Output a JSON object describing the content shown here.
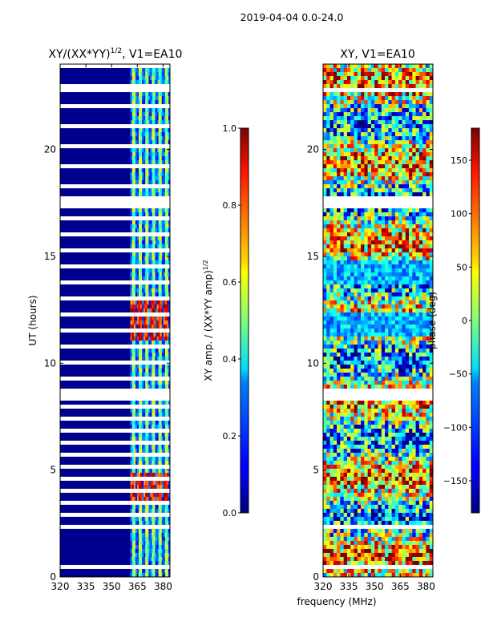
{
  "chart_data": {
    "type": "heatmap",
    "suptitle": "2019-04-04 0.0-24.0",
    "xlabel_shared": "frequency (MHz)",
    "panels": [
      {
        "title_main": "XY/(XX*YY)",
        "title_sup": "1/2",
        "title_tail": ", V1=EA10",
        "ylabel": "UT (hours)",
        "xlim": [
          320,
          384
        ],
        "ylim": [
          0,
          24
        ],
        "xticks": [
          320,
          335,
          350,
          365,
          380
        ],
        "yticks": [
          0,
          5,
          10,
          15,
          20
        ],
        "quantity": "normalized XY amplitude",
        "colorbar": {
          "label_main": "XY amp. / (XX*YY amp)",
          "label_sup": "1/2",
          "range": [
            0.0,
            1.0
          ],
          "ticks": [
            "0.0",
            "0.2",
            "0.4",
            "0.6",
            "0.8",
            "1.0"
          ]
        },
        "features": {
          "rfi_band_mhz": [
            361,
            384
          ],
          "high_amplitude_hours": [
            [
              3.6,
              4.9
            ],
            [
              11.1,
              13.0
            ]
          ],
          "data_gaps_hours": [
            [
              0.4,
              0.55
            ],
            [
              2.3,
              2.5
            ],
            [
              8.3,
              8.8
            ],
            [
              17.2,
              17.9
            ],
            [
              22.6,
              22.9
            ]
          ]
        }
      },
      {
        "title_main": "XY, V1=EA10",
        "ylabel": "",
        "xlim": [
          320,
          384
        ],
        "ylim": [
          0,
          24
        ],
        "xticks": [
          320,
          335,
          350,
          365,
          380
        ],
        "yticks": [
          0,
          5,
          10,
          15,
          20
        ],
        "quantity": "XY phase",
        "colorbar": {
          "label": "phase (deg)",
          "range": [
            -180,
            180
          ],
          "ticks": [
            "−150",
            "−100",
            "−50",
            "0",
            "50",
            "100",
            "150"
          ]
        },
        "features": {
          "phase_band_hours": [
            [
              11.2,
              12.4
            ],
            [
              13.6,
              14.8
            ]
          ],
          "data_gaps_hours": [
            [
              0.4,
              0.55
            ],
            [
              2.3,
              2.5
            ],
            [
              8.3,
              8.8
            ],
            [
              17.2,
              17.9
            ],
            [
              22.6,
              22.9
            ]
          ]
        }
      }
    ]
  }
}
